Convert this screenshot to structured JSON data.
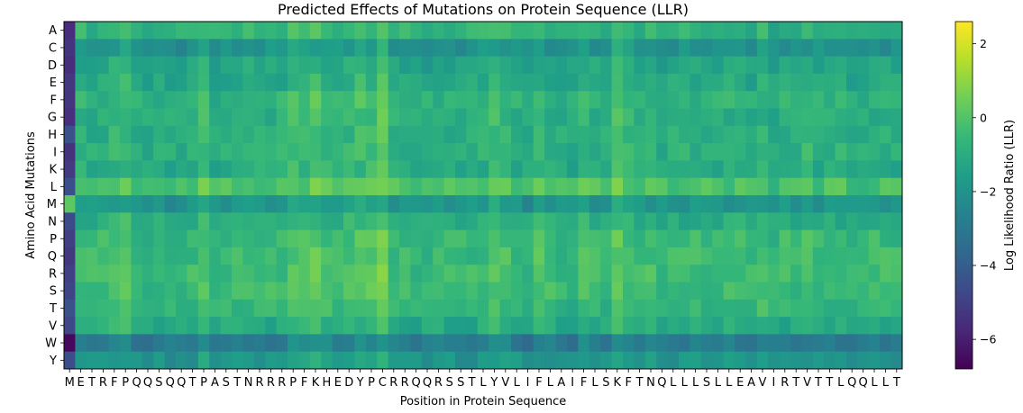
{
  "chart_data": {
    "type": "heatmap",
    "title": "Predicted Effects of Mutations on Protein Sequence (LLR)",
    "xlabel": "Position in Protein Sequence",
    "ylabel": "Amino Acid Mutations",
    "colorbar_label": "Log Likelihood Ratio (LLR)",
    "colormap": "viridis",
    "vmin": -6.8,
    "vmax": 2.6,
    "colorbar_ticks": [
      2,
      0,
      -2,
      -4,
      -6
    ],
    "x_ticks": [
      "M",
      "E",
      "T",
      "R",
      "F",
      "P",
      "Q",
      "Q",
      "S",
      "Q",
      "Q",
      "T",
      "P",
      "A",
      "S",
      "T",
      "N",
      "R",
      "R",
      "R",
      "P",
      "F",
      "K",
      "H",
      "E",
      "D",
      "Y",
      "P",
      "C",
      "R",
      "R",
      "Q",
      "Q",
      "R",
      "S",
      "S",
      "T",
      "L",
      "Y",
      "V",
      "L",
      "I",
      "F",
      "L",
      "A",
      "I",
      "F",
      "L",
      "S",
      "K",
      "F",
      "T",
      "N",
      "Q",
      "L",
      "L",
      "L",
      "S",
      "L",
      "L",
      "E",
      "A",
      "V",
      "I",
      "R",
      "T",
      "V",
      "T",
      "T",
      "L",
      "Q",
      "Q",
      "L",
      "L",
      "T"
    ],
    "y_ticks": [
      "A",
      "C",
      "D",
      "E",
      "F",
      "G",
      "H",
      "I",
      "K",
      "L",
      "M",
      "N",
      "P",
      "Q",
      "R",
      "S",
      "T",
      "V",
      "W",
      "Y"
    ]
  }
}
